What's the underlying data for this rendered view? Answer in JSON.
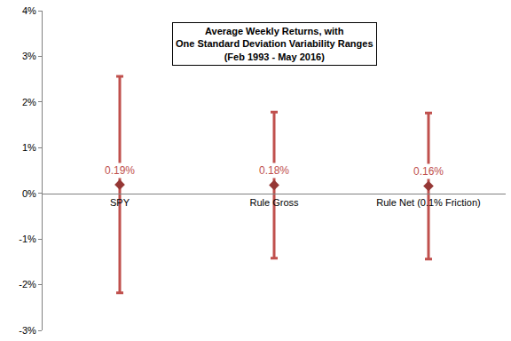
{
  "chart_data": {
    "type": "scatter",
    "title": "Average Weekly Returns, with\nOne Standard Deviation Variability Ranges\n(Feb 1993 - May 2016)",
    "categories": [
      "SPY",
      "Rule Gross",
      "Rule Net (0.1% Friction)"
    ],
    "values": [
      0.19,
      0.18,
      0.16
    ],
    "value_labels": [
      "0.19%",
      "0.18%",
      "0.16%"
    ],
    "error": [
      2.37,
      1.6,
      1.6
    ],
    "data_labels": true,
    "color": "#953735",
    "marker": "diamond",
    "ylim": [
      -3,
      4
    ],
    "yticks": [
      {
        "value": -3,
        "label": "-3%"
      },
      {
        "value": -2,
        "label": "-2%"
      },
      {
        "value": -1,
        "label": "-1%"
      },
      {
        "value": 0,
        "label": "0%"
      },
      {
        "value": 1,
        "label": "1%"
      },
      {
        "value": 2,
        "label": "2%"
      },
      {
        "value": 3,
        "label": "3%"
      },
      {
        "value": 4,
        "label": "4%"
      }
    ],
    "grid": false
  }
}
